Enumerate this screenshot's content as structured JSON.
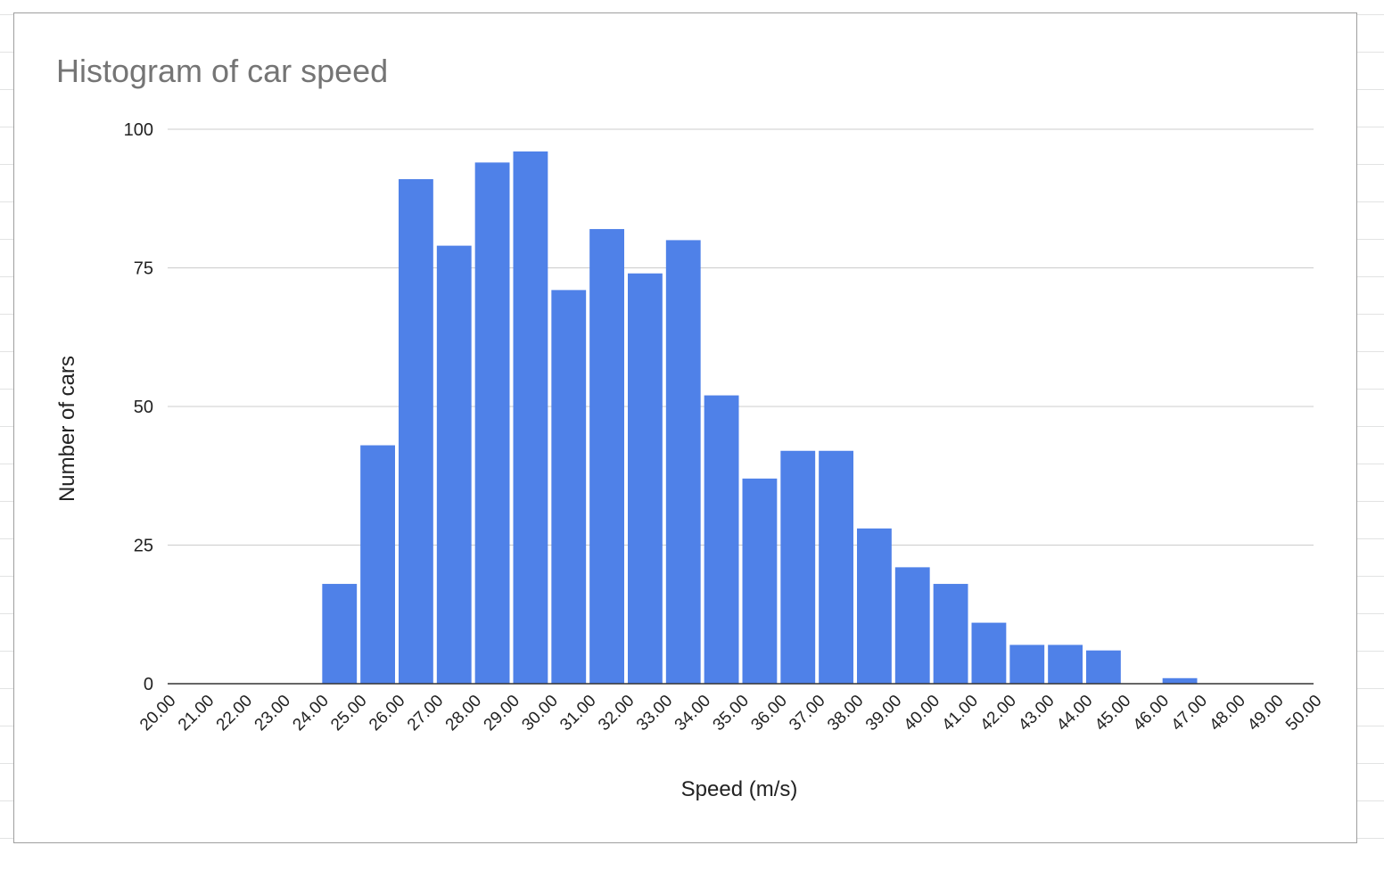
{
  "chart_data": {
    "type": "bar",
    "title": "Histogram of car speed",
    "xlabel": "Speed (m/s)",
    "ylabel": "Number of cars",
    "ylim": [
      0,
      100
    ],
    "yticks": [
      0,
      25,
      50,
      75,
      100
    ],
    "grid": true,
    "legend": "none",
    "bar_color": "#4f81e8",
    "x_tick_labels": [
      "20.00",
      "21.00",
      "22.00",
      "23.00",
      "24.00",
      "25.00",
      "26.00",
      "27.00",
      "28.00",
      "29.00",
      "30.00",
      "31.00",
      "32.00",
      "33.00",
      "34.00",
      "35.00",
      "36.00",
      "37.00",
      "38.00",
      "39.00",
      "40.00",
      "41.00",
      "42.00",
      "43.00",
      "44.00",
      "45.00",
      "46.00",
      "47.00",
      "48.00",
      "49.00",
      "50.00"
    ],
    "bins": [
      {
        "from": 24,
        "to": 25,
        "count": 18
      },
      {
        "from": 25,
        "to": 26,
        "count": 43
      },
      {
        "from": 26,
        "to": 27,
        "count": 91
      },
      {
        "from": 27,
        "to": 28,
        "count": 79
      },
      {
        "from": 28,
        "to": 29,
        "count": 94
      },
      {
        "from": 29,
        "to": 30,
        "count": 96
      },
      {
        "from": 30,
        "to": 31,
        "count": 71
      },
      {
        "from": 31,
        "to": 32,
        "count": 82
      },
      {
        "from": 32,
        "to": 33,
        "count": 74
      },
      {
        "from": 33,
        "to": 34,
        "count": 80
      },
      {
        "from": 34,
        "to": 35,
        "count": 52
      },
      {
        "from": 35,
        "to": 36,
        "count": 37
      },
      {
        "from": 36,
        "to": 37,
        "count": 42
      },
      {
        "from": 37,
        "to": 38,
        "count": 42
      },
      {
        "from": 38,
        "to": 39,
        "count": 28
      },
      {
        "from": 39,
        "to": 40,
        "count": 21
      },
      {
        "from": 40,
        "to": 41,
        "count": 18
      },
      {
        "from": 41,
        "to": 42,
        "count": 11
      },
      {
        "from": 42,
        "to": 43,
        "count": 7
      },
      {
        "from": 43,
        "to": 44,
        "count": 7
      },
      {
        "from": 44,
        "to": 45,
        "count": 6
      },
      {
        "from": 46,
        "to": 47,
        "count": 1
      }
    ]
  }
}
